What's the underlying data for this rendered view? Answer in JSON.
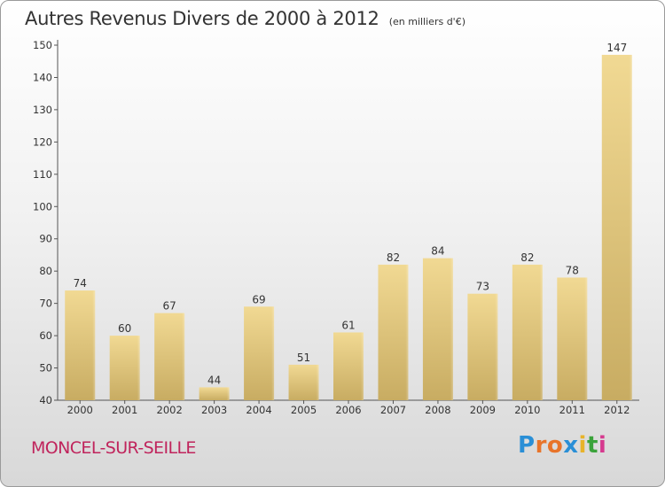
{
  "chart_data": {
    "type": "bar",
    "title": "Autres Revenus Divers de 2000 à 2012",
    "subtitle": "(en milliers d'€)",
    "categories": [
      "2000",
      "2001",
      "2002",
      "2003",
      "2004",
      "2005",
      "2006",
      "2007",
      "2008",
      "2009",
      "2010",
      "2011",
      "2012"
    ],
    "values": [
      74,
      60,
      67,
      44,
      69,
      51,
      61,
      82,
      84,
      73,
      82,
      78,
      147
    ],
    "ylim": [
      40,
      150
    ],
    "yticks": [
      40,
      50,
      60,
      70,
      80,
      90,
      100,
      110,
      120,
      130,
      140,
      150
    ],
    "grid": false,
    "bar_color": "#e6cc88"
  },
  "footer": {
    "commune": "MONCEL-SUR-SEILLE",
    "brand": "Proxiti",
    "brand_colors": [
      "#2a8fd6",
      "#e8742a",
      "#e8742a",
      "#2a8fd6",
      "#e8b32a",
      "#3aa33a",
      "#d63a8f"
    ]
  }
}
